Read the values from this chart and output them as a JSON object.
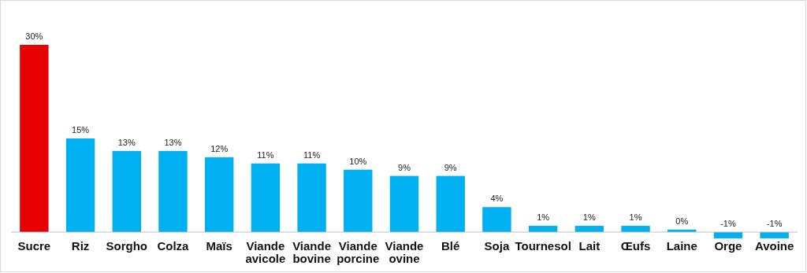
{
  "chart_data": {
    "type": "bar",
    "categories": [
      "Sucre",
      "Riz",
      "Sorgho",
      "Colza",
      "Maïs",
      "Viande avicole",
      "Viande bovine",
      "Viande porcine",
      "Viande ovine",
      "Blé",
      "Soja",
      "Tournesol",
      "Lait",
      "Œufs",
      "Laine",
      "Orge",
      "Avoine"
    ],
    "values": [
      30,
      15,
      13,
      13,
      12,
      11,
      11,
      10,
      9,
      9,
      4,
      1,
      1,
      1,
      0.4,
      -1,
      -1
    ],
    "value_labels": [
      "30%",
      "15%",
      "13%",
      "13%",
      "12%",
      "11%",
      "11%",
      "10%",
      "9%",
      "9%",
      "4%",
      "1%",
      "1%",
      "1%",
      "0%",
      "-1%",
      "-1%"
    ],
    "colors": [
      "#e60000",
      "#00b0f0",
      "#00b0f0",
      "#00b0f0",
      "#00b0f0",
      "#00b0f0",
      "#00b0f0",
      "#00b0f0",
      "#00b0f0",
      "#00b0f0",
      "#00b0f0",
      "#00b0f0",
      "#00b0f0",
      "#00b0f0",
      "#00b0f0",
      "#00b0f0",
      "#00b0f0"
    ]
  }
}
